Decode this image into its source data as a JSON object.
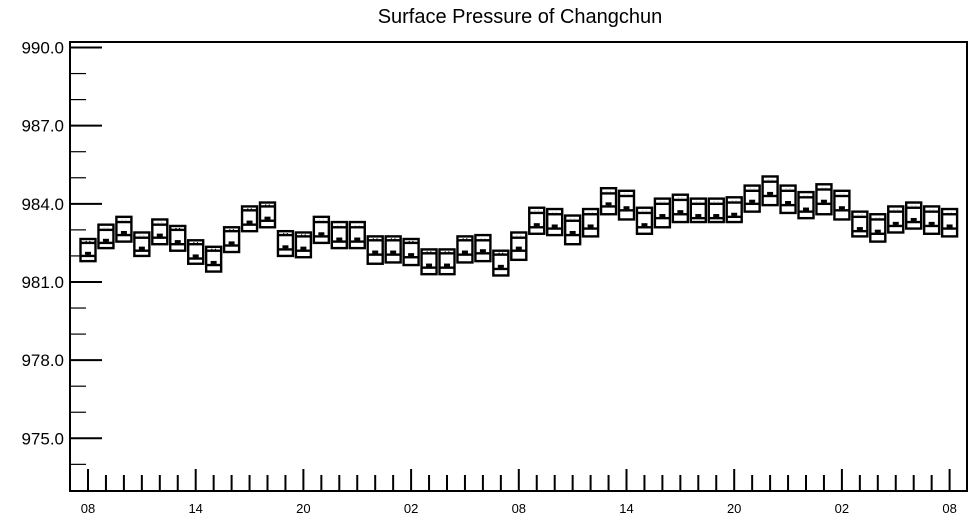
{
  "chart_data": {
    "type": "boxplot",
    "title": "Surface Pressure of Changchun",
    "xlabel": "",
    "ylabel": "",
    "ylim": [
      973.0,
      990.2
    ],
    "y_ticks": [
      "990.0",
      "987.0",
      "984.0",
      "981.0",
      "978.0",
      "975.0"
    ],
    "y_tick_values": [
      990.0,
      987.0,
      984.0,
      981.0,
      978.0,
      975.0
    ],
    "x_tick_labels": [
      "08",
      "14",
      "20",
      "02",
      "08",
      "14",
      "20",
      "02",
      "08"
    ],
    "x_tick_hours": [
      0,
      6,
      12,
      18,
      24,
      30,
      36,
      42,
      48
    ],
    "grid": false,
    "boxes": [
      {
        "hour": 0,
        "max": 982.65,
        "q3": 982.5,
        "median": 982.1,
        "q1": 982.0,
        "min": 981.8
      },
      {
        "hour": 1,
        "max": 983.2,
        "q3": 983.0,
        "median": 982.6,
        "q1": 982.5,
        "min": 982.3
      },
      {
        "hour": 2,
        "max": 983.5,
        "q3": 983.3,
        "median": 982.9,
        "q1": 982.8,
        "min": 982.55
      },
      {
        "hour": 3,
        "max": 982.9,
        "q3": 982.7,
        "median": 982.3,
        "q1": 982.2,
        "min": 982.0
      },
      {
        "hour": 4,
        "max": 983.4,
        "q3": 983.2,
        "median": 982.8,
        "q1": 982.7,
        "min": 982.45
      },
      {
        "hour": 5,
        "max": 983.15,
        "q3": 983.0,
        "median": 982.55,
        "q1": 982.45,
        "min": 982.2
      },
      {
        "hour": 6,
        "max": 982.6,
        "q3": 982.45,
        "median": 982.0,
        "q1": 981.9,
        "min": 981.7
      },
      {
        "hour": 7,
        "max": 982.35,
        "q3": 982.2,
        "median": 981.75,
        "q1": 981.65,
        "min": 981.4
      },
      {
        "hour": 8,
        "max": 983.1,
        "q3": 982.95,
        "median": 982.5,
        "q1": 982.4,
        "min": 982.15
      },
      {
        "hour": 9,
        "max": 983.9,
        "q3": 983.75,
        "median": 983.3,
        "q1": 983.2,
        "min": 982.95
      },
      {
        "hour": 10,
        "max": 984.05,
        "q3": 983.9,
        "median": 983.45,
        "q1": 983.35,
        "min": 983.1
      },
      {
        "hour": 11,
        "max": 982.95,
        "q3": 982.8,
        "median": 982.35,
        "q1": 982.25,
        "min": 982.0
      },
      {
        "hour": 12,
        "max": 982.9,
        "q3": 982.75,
        "median": 982.3,
        "q1": 982.2,
        "min": 981.95
      },
      {
        "hour": 13,
        "max": 983.5,
        "q3": 983.3,
        "median": 982.85,
        "q1": 982.75,
        "min": 982.5
      },
      {
        "hour": 14,
        "max": 983.3,
        "q3": 983.1,
        "median": 982.65,
        "q1": 982.55,
        "min": 982.3
      },
      {
        "hour": 15,
        "max": 983.3,
        "q3": 983.1,
        "median": 982.65,
        "q1": 982.55,
        "min": 982.3
      },
      {
        "hour": 16,
        "max": 982.75,
        "q3": 982.6,
        "median": 982.15,
        "q1": 982.05,
        "min": 981.7
      },
      {
        "hour": 17,
        "max": 982.75,
        "q3": 982.6,
        "median": 982.15,
        "q1": 982.05,
        "min": 981.75
      },
      {
        "hour": 18,
        "max": 982.65,
        "q3": 982.5,
        "median": 982.05,
        "q1": 981.95,
        "min": 981.65
      },
      {
        "hour": 19,
        "max": 982.25,
        "q3": 982.1,
        "median": 981.65,
        "q1": 981.55,
        "min": 981.3
      },
      {
        "hour": 20,
        "max": 982.25,
        "q3": 982.1,
        "median": 981.65,
        "q1": 981.55,
        "min": 981.3
      },
      {
        "hour": 21,
        "max": 982.75,
        "q3": 982.6,
        "median": 982.15,
        "q1": 982.05,
        "min": 981.75
      },
      {
        "hour": 22,
        "max": 982.8,
        "q3": 982.6,
        "median": 982.2,
        "q1": 982.1,
        "min": 981.8
      },
      {
        "hour": 23,
        "max": 982.2,
        "q3": 982.05,
        "median": 981.6,
        "q1": 981.5,
        "min": 981.25
      },
      {
        "hour": 24,
        "max": 982.9,
        "q3": 982.7,
        "median": 982.3,
        "q1": 982.2,
        "min": 981.85
      },
      {
        "hour": 25,
        "max": 983.85,
        "q3": 983.65,
        "median": 983.2,
        "q1": 983.1,
        "min": 982.85
      },
      {
        "hour": 26,
        "max": 983.8,
        "q3": 983.6,
        "median": 983.15,
        "q1": 983.05,
        "min": 982.8
      },
      {
        "hour": 27,
        "max": 983.55,
        "q3": 983.35,
        "median": 982.9,
        "q1": 982.8,
        "min": 982.45
      },
      {
        "hour": 28,
        "max": 983.8,
        "q3": 983.6,
        "median": 983.15,
        "q1": 983.05,
        "min": 982.75
      },
      {
        "hour": 29,
        "max": 984.6,
        "q3": 984.4,
        "median": 984.0,
        "q1": 983.9,
        "min": 983.6
      },
      {
        "hour": 30,
        "max": 984.5,
        "q3": 984.3,
        "median": 983.85,
        "q1": 983.75,
        "min": 983.4
      },
      {
        "hour": 31,
        "max": 983.85,
        "q3": 983.65,
        "median": 983.2,
        "q1": 983.1,
        "min": 982.85
      },
      {
        "hour": 32,
        "max": 984.2,
        "q3": 984.0,
        "median": 983.55,
        "q1": 983.45,
        "min": 983.1
      },
      {
        "hour": 33,
        "max": 984.35,
        "q3": 984.15,
        "median": 983.7,
        "q1": 983.6,
        "min": 983.3
      },
      {
        "hour": 34,
        "max": 984.2,
        "q3": 984.0,
        "median": 983.55,
        "q1": 983.45,
        "min": 983.3
      },
      {
        "hour": 35,
        "max": 984.2,
        "q3": 984.0,
        "median": 983.55,
        "q1": 983.45,
        "min": 983.3
      },
      {
        "hour": 36,
        "max": 984.25,
        "q3": 984.05,
        "median": 983.6,
        "q1": 983.5,
        "min": 983.3
      },
      {
        "hour": 37,
        "max": 984.7,
        "q3": 984.5,
        "median": 984.1,
        "q1": 984.0,
        "min": 983.7
      },
      {
        "hour": 38,
        "max": 985.05,
        "q3": 984.85,
        "median": 984.4,
        "q1": 984.3,
        "min": 983.95
      },
      {
        "hour": 39,
        "max": 984.7,
        "q3": 984.5,
        "median": 984.05,
        "q1": 983.95,
        "min": 983.65
      },
      {
        "hour": 40,
        "max": 984.45,
        "q3": 984.25,
        "median": 983.8,
        "q1": 983.7,
        "min": 983.45
      },
      {
        "hour": 41,
        "max": 984.75,
        "q3": 984.55,
        "median": 984.1,
        "q1": 984.0,
        "min": 983.6
      },
      {
        "hour": 42,
        "max": 984.5,
        "q3": 984.3,
        "median": 983.85,
        "q1": 983.75,
        "min": 983.4
      },
      {
        "hour": 43,
        "max": 983.7,
        "q3": 983.5,
        "median": 983.05,
        "q1": 982.95,
        "min": 982.75
      },
      {
        "hour": 44,
        "max": 983.6,
        "q3": 983.4,
        "median": 982.95,
        "q1": 982.85,
        "min": 982.55
      },
      {
        "hour": 45,
        "max": 983.9,
        "q3": 983.7,
        "median": 983.25,
        "q1": 983.15,
        "min": 982.9
      },
      {
        "hour": 46,
        "max": 984.05,
        "q3": 983.85,
        "median": 983.4,
        "q1": 983.3,
        "min": 983.05
      },
      {
        "hour": 47,
        "max": 983.9,
        "q3": 983.7,
        "median": 983.25,
        "q1": 983.15,
        "min": 982.85
      },
      {
        "hour": 48,
        "max": 983.8,
        "q3": 983.6,
        "median": 983.15,
        "q1": 983.05,
        "min": 982.75
      }
    ]
  }
}
